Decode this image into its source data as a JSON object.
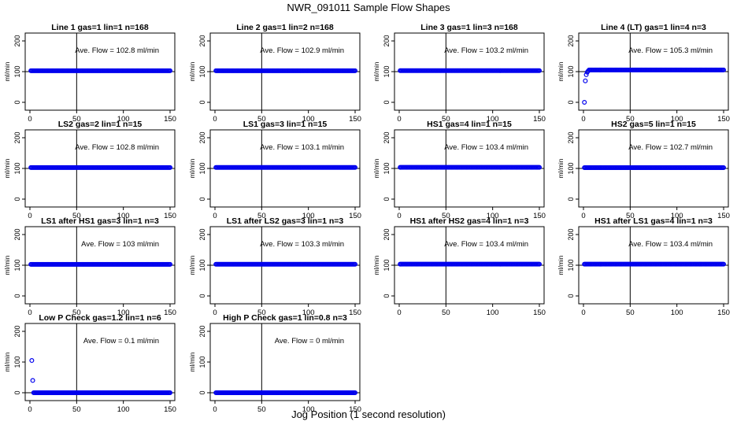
{
  "title": "NWR_091011  Sample Flow Shapes",
  "xlabel": "Jog Position (1 second resolution)",
  "ylabel": "ml/min",
  "annotation_prefix": "Ave. Flow = ",
  "annotation_unit": "ml/min",
  "colors": {
    "points": "#0000ee",
    "lines": "#000000"
  },
  "chart_data": [
    {
      "type": "scatter",
      "title": "Line 1 gas=1 lin=1 n=168",
      "ave_flow": "102.8",
      "xlim": [
        0,
        150
      ],
      "ylim": [
        0,
        200
      ],
      "xticks": [
        0,
        50,
        100,
        150
      ],
      "yticks": [
        0,
        100,
        200
      ],
      "vline_x": 50,
      "hline_y": 100,
      "y_constant": 102.8
    },
    {
      "type": "scatter",
      "title": "Line 2 gas=1 lin=2 n=168",
      "ave_flow": "102.9",
      "xlim": [
        0,
        150
      ],
      "ylim": [
        0,
        200
      ],
      "xticks": [
        0,
        50,
        100,
        150
      ],
      "yticks": [
        0,
        100,
        200
      ],
      "vline_x": 50,
      "hline_y": 100,
      "y_constant": 102.9
    },
    {
      "type": "scatter",
      "title": "Line 3 gas=1 lin=3 n=168",
      "ave_flow": "103.2",
      "xlim": [
        0,
        150
      ],
      "ylim": [
        0,
        200
      ],
      "xticks": [
        0,
        50,
        100,
        150
      ],
      "yticks": [
        0,
        100,
        200
      ],
      "vline_x": 50,
      "hline_y": 100,
      "y_constant": 103.2
    },
    {
      "type": "scatter",
      "title": "Line 4 (LT) gas=1 lin=4 n=3",
      "ave_flow": "105.3",
      "xlim": [
        0,
        150
      ],
      "ylim": [
        0,
        200
      ],
      "xticks": [
        0,
        50,
        100,
        150
      ],
      "yticks": [
        0,
        100,
        200
      ],
      "vline_x": 50,
      "hline_y": 100,
      "y_constant": 105.3,
      "extra_points": [
        [
          1,
          0
        ],
        [
          2,
          70
        ],
        [
          3,
          90
        ],
        [
          4,
          98
        ],
        [
          5,
          102
        ]
      ]
    },
    {
      "type": "scatter",
      "title": "LS2 gas=2 lin=1 n=15",
      "ave_flow": "102.8",
      "xlim": [
        0,
        150
      ],
      "ylim": [
        0,
        200
      ],
      "xticks": [
        0,
        50,
        100,
        150
      ],
      "yticks": [
        0,
        100,
        200
      ],
      "vline_x": 50,
      "hline_y": 100,
      "y_constant": 102.8
    },
    {
      "type": "scatter",
      "title": "LS1 gas=3 lin=1 n=15",
      "ave_flow": "103.1",
      "xlim": [
        0,
        150
      ],
      "ylim": [
        0,
        200
      ],
      "xticks": [
        0,
        50,
        100,
        150
      ],
      "yticks": [
        0,
        100,
        200
      ],
      "vline_x": 50,
      "hline_y": 100,
      "y_constant": 103.1
    },
    {
      "type": "scatter",
      "title": "HS1 gas=4 lin=1 n=15",
      "ave_flow": "103.4",
      "xlim": [
        0,
        150
      ],
      "ylim": [
        0,
        200
      ],
      "xticks": [
        0,
        50,
        100,
        150
      ],
      "yticks": [
        0,
        100,
        200
      ],
      "vline_x": 50,
      "hline_y": 100,
      "y_constant": 103.4
    },
    {
      "type": "scatter",
      "title": "HS2 gas=5 lin=1 n=15",
      "ave_flow": "102.7",
      "xlim": [
        0,
        150
      ],
      "ylim": [
        0,
        200
      ],
      "xticks": [
        0,
        50,
        100,
        150
      ],
      "yticks": [
        0,
        100,
        200
      ],
      "vline_x": 50,
      "hline_y": 100,
      "y_constant": 102.7
    },
    {
      "type": "scatter",
      "title": "LS1 after HS1 gas=3 lin=1 n=3",
      "ave_flow": "103",
      "xlim": [
        0,
        150
      ],
      "ylim": [
        0,
        200
      ],
      "xticks": [
        0,
        50,
        100,
        150
      ],
      "yticks": [
        0,
        100,
        200
      ],
      "vline_x": 50,
      "hline_y": 100,
      "y_constant": 103
    },
    {
      "type": "scatter",
      "title": "LS1 after LS2 gas=3 lin=1 n=3",
      "ave_flow": "103.3",
      "xlim": [
        0,
        150
      ],
      "ylim": [
        0,
        200
      ],
      "xticks": [
        0,
        50,
        100,
        150
      ],
      "yticks": [
        0,
        100,
        200
      ],
      "vline_x": 50,
      "hline_y": 100,
      "y_constant": 103.3
    },
    {
      "type": "scatter",
      "title": "HS1 after HS2 gas=4 lin=1 n=3",
      "ave_flow": "103.4",
      "xlim": [
        0,
        150
      ],
      "ylim": [
        0,
        200
      ],
      "xticks": [
        0,
        50,
        100,
        150
      ],
      "yticks": [
        0,
        100,
        200
      ],
      "vline_x": 50,
      "hline_y": 100,
      "y_constant": 103.4
    },
    {
      "type": "scatter",
      "title": "HS1 after LS1 gas=4 lin=1 n=3",
      "ave_flow": "103.4",
      "xlim": [
        0,
        150
      ],
      "ylim": [
        0,
        200
      ],
      "xticks": [
        0,
        50,
        100,
        150
      ],
      "yticks": [
        0,
        100,
        200
      ],
      "vline_x": 50,
      "hline_y": 100,
      "y_constant": 103.4
    },
    {
      "type": "scatter",
      "title": "Low P Check gas=1.2 lin=1 n=6",
      "ave_flow": "0.1",
      "xlim": [
        0,
        150
      ],
      "ylim": [
        0,
        200
      ],
      "xticks": [
        0,
        50,
        100,
        150
      ],
      "yticks": [
        0,
        100,
        200
      ],
      "vline_x": 50,
      "hline_y": 0,
      "y_constant": 0,
      "extra_points": [
        [
          2,
          105
        ],
        [
          3,
          40
        ]
      ]
    },
    {
      "type": "scatter",
      "title": "High P Check gas=1 lin=0.8 n=3",
      "ave_flow": "0",
      "xlim": [
        0,
        150
      ],
      "ylim": [
        0,
        200
      ],
      "xticks": [
        0,
        50,
        100,
        150
      ],
      "yticks": [
        0,
        100,
        200
      ],
      "vline_x": 50,
      "hline_y": 0,
      "y_constant": 0
    }
  ]
}
